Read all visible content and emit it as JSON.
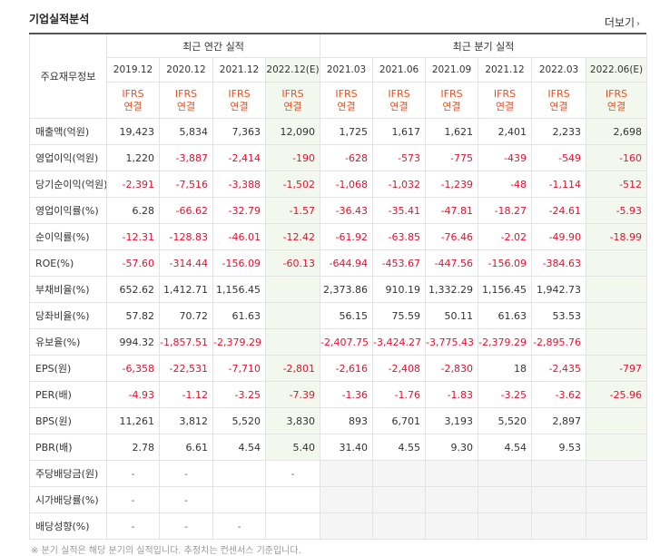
{
  "section_title": "기업실적분석",
  "more_label": "더보기",
  "row_header_label": "주요재무정보",
  "annual_group_label": "최근 연간 실적",
  "quarterly_group_label": "최근 분기 실적",
  "annual_periods": [
    "2019.12",
    "2020.12",
    "2021.12",
    "2022.12(E)"
  ],
  "quarterly_periods": [
    "2021.03",
    "2021.06",
    "2021.09",
    "2021.12",
    "2022.03",
    "2022.06(E)"
  ],
  "ifrs_line1": "IFRS",
  "ifrs_line2": "연결",
  "rows": [
    {
      "label": "매출액(억원)",
      "values": [
        "19,423",
        "5,834",
        "7,363",
        "12,090",
        "1,725",
        "1,617",
        "1,621",
        "2,401",
        "2,233",
        "2,698"
      ]
    },
    {
      "label": "영업이익(억원)",
      "values": [
        "1,220",
        "-3,887",
        "-2,414",
        "-190",
        "-628",
        "-573",
        "-775",
        "-439",
        "-549",
        "-160"
      ]
    },
    {
      "label": "당기순이익(억원)",
      "values": [
        "-2,391",
        "-7,516",
        "-3,388",
        "-1,502",
        "-1,068",
        "-1,032",
        "-1,239",
        "-48",
        "-1,114",
        "-512"
      ]
    },
    {
      "label": "영업이익률(%)",
      "values": [
        "6.28",
        "-66.62",
        "-32.79",
        "-1.57",
        "-36.43",
        "-35.41",
        "-47.81",
        "-18.27",
        "-24.61",
        "-5.93"
      ]
    },
    {
      "label": "순이익률(%)",
      "values": [
        "-12.31",
        "-128.83",
        "-46.01",
        "-12.42",
        "-61.92",
        "-63.85",
        "-76.46",
        "-2.02",
        "-49.90",
        "-18.99"
      ]
    },
    {
      "label": "ROE(%)",
      "values": [
        "-57.60",
        "-314.44",
        "-156.09",
        "-60.13",
        "-644.94",
        "-453.67",
        "-447.56",
        "-156.09",
        "-384.63",
        ""
      ]
    },
    {
      "label": "부채비율(%)",
      "values": [
        "652.62",
        "1,412.71",
        "1,156.45",
        "",
        "2,373.86",
        "910.19",
        "1,332.29",
        "1,156.45",
        "1,942.73",
        ""
      ]
    },
    {
      "label": "당좌비율(%)",
      "values": [
        "57.82",
        "70.72",
        "61.63",
        "",
        "56.15",
        "75.59",
        "50.11",
        "61.63",
        "53.53",
        ""
      ]
    },
    {
      "label": "유보율(%)",
      "values": [
        "994.32",
        "-1,857.51",
        "-2,379.29",
        "",
        "-2,407.75",
        "-3,424.27",
        "-3,775.43",
        "-2,379.29",
        "-2,895.76",
        ""
      ]
    },
    {
      "label": "EPS(원)",
      "values": [
        "-6,358",
        "-22,531",
        "-7,710",
        "-2,801",
        "-2,616",
        "-2,408",
        "-2,830",
        "18",
        "-2,435",
        "-797"
      ]
    },
    {
      "label": "PER(배)",
      "values": [
        "-4.93",
        "-1.12",
        "-3.25",
        "-7.39",
        "-1.36",
        "-1.76",
        "-1.83",
        "-3.25",
        "-3.62",
        "-25.96"
      ]
    },
    {
      "label": "BPS(원)",
      "values": [
        "11,261",
        "3,812",
        "5,520",
        "3,830",
        "893",
        "6,701",
        "3,193",
        "5,520",
        "2,897",
        ""
      ]
    },
    {
      "label": "PBR(배)",
      "values": [
        "2.78",
        "6.61",
        "4.54",
        "5.40",
        "31.40",
        "4.55",
        "9.30",
        "4.54",
        "9.53",
        ""
      ]
    },
    {
      "label": "주당배당금(원)",
      "values": [
        "-",
        "-",
        "",
        "-",
        "",
        "",
        "",
        "",
        "",
        ""
      ]
    },
    {
      "label": "시가배당률(%)",
      "values": [
        "-",
        "-",
        "",
        "",
        "",
        "",
        "",
        "",
        "",
        ""
      ]
    },
    {
      "label": "배당성향(%)",
      "values": [
        "-",
        "-",
        "-",
        "",
        "",
        "",
        "",
        "",
        "",
        ""
      ]
    }
  ],
  "footnote": "※ 분기 실적은 해당 분기의 실적입니다. 추정치는 컨센서스 기준입니다."
}
